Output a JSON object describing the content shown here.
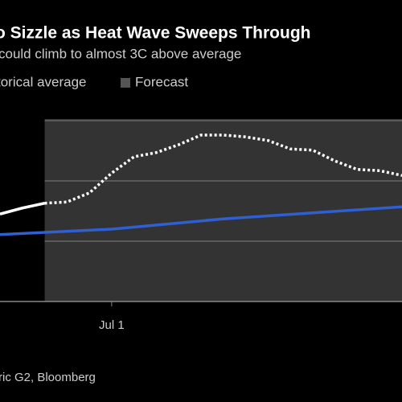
{
  "chart_data": {
    "type": "line",
    "title": "o Sizzle as Heat Wave Sweeps Through",
    "subtitle": "could climb to almost 3C above average",
    "source": "ric G2, Bloomberg",
    "xlim": [
      -5,
      13
    ],
    "xticks": [
      {
        "value": 0,
        "label": "Jul 1"
      }
    ],
    "ylim": [
      0,
      3
    ],
    "grid_lines": [
      1,
      2,
      3
    ],
    "forecast_region": {
      "label": "Forecast",
      "color": "#333333",
      "start": -3
    },
    "series": [
      {
        "name": "torical average",
        "color": "#2f5fd0",
        "x": [
          -5,
          0,
          5,
          13
        ],
        "values": [
          1.11,
          1.2,
          1.37,
          1.57
        ]
      },
      {
        "color": "#ffffff",
        "x": [
          -5,
          -4,
          -3
        ],
        "values": [
          1.45,
          1.55,
          1.63
        ]
      },
      {
        "color": "#ffffff",
        "dashed": true,
        "x": [
          -3,
          -2,
          -1,
          0,
          1,
          2,
          3,
          4,
          5,
          6,
          7,
          8,
          9,
          10,
          11,
          12,
          13
        ],
        "values": [
          1.63,
          1.65,
          1.8,
          2.13,
          2.4,
          2.47,
          2.6,
          2.76,
          2.76,
          2.73,
          2.67,
          2.53,
          2.51,
          2.33,
          2.19,
          2.17,
          2.09
        ]
      }
    ]
  }
}
